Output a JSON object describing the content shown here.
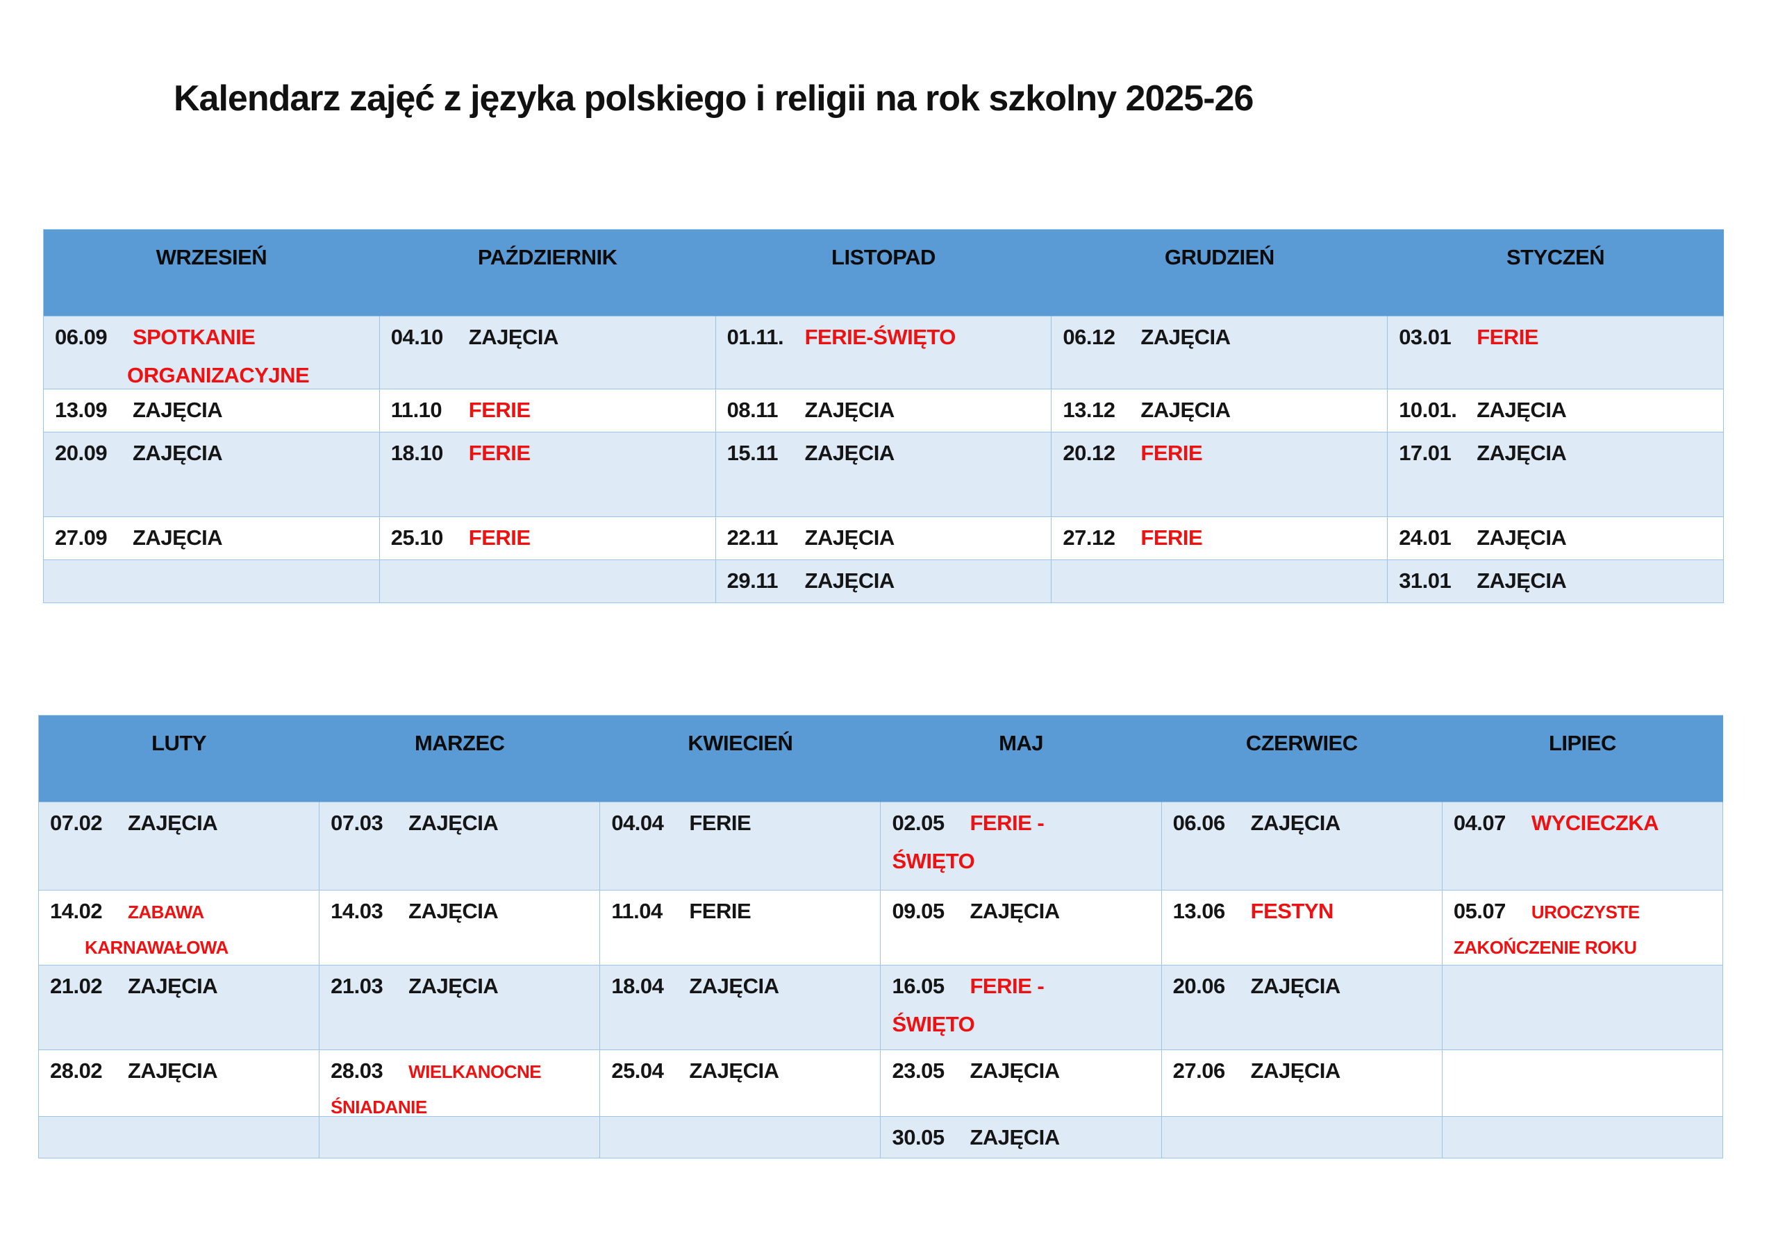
{
  "title": "Kalendarz zajęć z języka polskiego i religii na rok szkolny 2025-26",
  "colors": {
    "header_bg": "#5B9BD5",
    "row_alt_bg": "#DEEAF6",
    "row_bg": "#FFFFFF",
    "border": "#9DC3E6",
    "highlight_red": "#EE1111",
    "text_black": "#151515"
  },
  "table1": {
    "months": [
      "WRZESIEŃ",
      "PAŹDZIERNIK",
      "LISTOPAD",
      "GRUDZIEŃ",
      "STYCZEŃ"
    ],
    "rows": [
      [
        {
          "date": "06.09",
          "label": "SPOTKANIE",
          "label2": "ORGANIZACYJNE",
          "red": true,
          "indent2": "lg"
        },
        {
          "date": "04.10",
          "label": "ZAJĘCIA"
        },
        {
          "date": "01.11.",
          "label": "FERIE-ŚWIĘTO",
          "red": true
        },
        {
          "date": "06.12",
          "label": "ZAJĘCIA"
        },
        {
          "date": "03.01",
          "label": "FERIE",
          "red": true
        }
      ],
      [
        {
          "date": "13.09",
          "label": "ZAJĘCIA"
        },
        {
          "date": "11.10",
          "label": "FERIE",
          "red": true
        },
        {
          "date": "08.11",
          "label": "ZAJĘCIA"
        },
        {
          "date": "13.12",
          "label": "ZAJĘCIA"
        },
        {
          "date": "10.01.",
          "label": "ZAJĘCIA"
        }
      ],
      [
        {
          "date": "20.09",
          "label": "ZAJĘCIA"
        },
        {
          "date": "18.10",
          "label": "FERIE",
          "red": true
        },
        {
          "date": "15.11",
          "label": "ZAJĘCIA"
        },
        {
          "date": "20.12",
          "label": "FERIE",
          "red": true
        },
        {
          "date": "17.01",
          "label": "ZAJĘCIA"
        }
      ],
      [
        {
          "date": "27.09",
          "label": "ZAJĘCIA"
        },
        {
          "date": "25.10",
          "label": "FERIE",
          "red": true
        },
        {
          "date": "22.11",
          "label": "ZAJĘCIA"
        },
        {
          "date": "27.12",
          "label": "FERIE",
          "red": true
        },
        {
          "date": "24.01",
          "label": "ZAJĘCIA"
        }
      ],
      [
        {},
        {},
        {
          "date": "29.11",
          "label": "ZAJĘCIA"
        },
        {},
        {
          "date": "31.01",
          "label": "ZAJĘCIA"
        }
      ]
    ]
  },
  "table2": {
    "months": [
      "LUTY",
      "MARZEC",
      "KWIECIEŃ",
      "MAJ",
      "CZERWIEC",
      "LIPIEC"
    ],
    "rows": [
      [
        {
          "date": "07.02",
          "label": "ZAJĘCIA"
        },
        {
          "date": "07.03",
          "label": "ZAJĘCIA"
        },
        {
          "date": "04.04",
          "label": "FERIE"
        },
        {
          "date": "02.05",
          "label": "FERIE -",
          "label2": "ŚWIĘTO",
          "red": true
        },
        {
          "date": "06.06",
          "label": "ZAJĘCIA"
        },
        {
          "date": "04.07",
          "label": "WYCIECZKA",
          "red": true
        }
      ],
      [
        {
          "date": "14.02",
          "label": "ZABAWA",
          "label2": "KARNAWAŁOWA",
          "red": true,
          "small": true,
          "indent2": "sm"
        },
        {
          "date": "14.03",
          "label": "ZAJĘCIA"
        },
        {
          "date": "11.04",
          "label": "FERIE"
        },
        {
          "date": "09.05",
          "label": "ZAJĘCIA"
        },
        {
          "date": "13.06",
          "label": "FESTYN",
          "red": true
        },
        {
          "date": "05.07",
          "label": "UROCZYSTE",
          "label2": "ZAKOŃCZENIE ROKU",
          "red": true,
          "small": true
        }
      ],
      [
        {
          "date": "21.02",
          "label": "ZAJĘCIA"
        },
        {
          "date": "21.03",
          "label": "ZAJĘCIA"
        },
        {
          "date": "18.04",
          "label": "ZAJĘCIA"
        },
        {
          "date": "16.05",
          "label": "FERIE -",
          "label2": "ŚWIĘTO",
          "red": true
        },
        {
          "date": "20.06",
          "label": "ZAJĘCIA"
        },
        {}
      ],
      [
        {
          "date": "28.02",
          "label": "ZAJĘCIA"
        },
        {
          "date": "28.03",
          "label": "WIELKANOCNE",
          "label2": "ŚNIADANIE",
          "red": true,
          "small": true
        },
        {
          "date": "25.04",
          "label": "ZAJĘCIA"
        },
        {
          "date": "23.05",
          "label": "ZAJĘCIA"
        },
        {
          "date": "27.06",
          "label": "ZAJĘCIA"
        },
        {}
      ],
      [
        {},
        {},
        {},
        {
          "date": "30.05",
          "label": "ZAJĘCIA"
        },
        {},
        {}
      ]
    ]
  }
}
